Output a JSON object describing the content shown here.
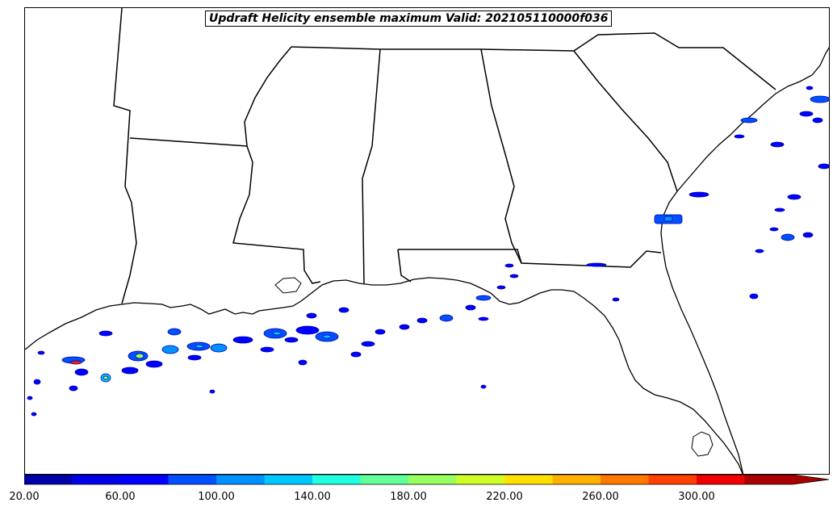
{
  "title": "Updraft Helicity ensemble maximum Valid: 202105110000f036",
  "colorbar": {
    "colors": [
      "#0000a8",
      "#0000e6",
      "#0000ff",
      "#0050ff",
      "#0090ff",
      "#00c8ff",
      "#20ffe0",
      "#60ff98",
      "#98ff60",
      "#d0ff28",
      "#ffe000",
      "#ffb000",
      "#ff7800",
      "#ff4000",
      "#f00000",
      "#a80000"
    ],
    "extend_color": "#a80000",
    "tick_labels": [
      "20.00",
      "60.00",
      "100.00",
      "140.00",
      "180.00",
      "220.00",
      "260.00",
      "300.00"
    ]
  }
}
